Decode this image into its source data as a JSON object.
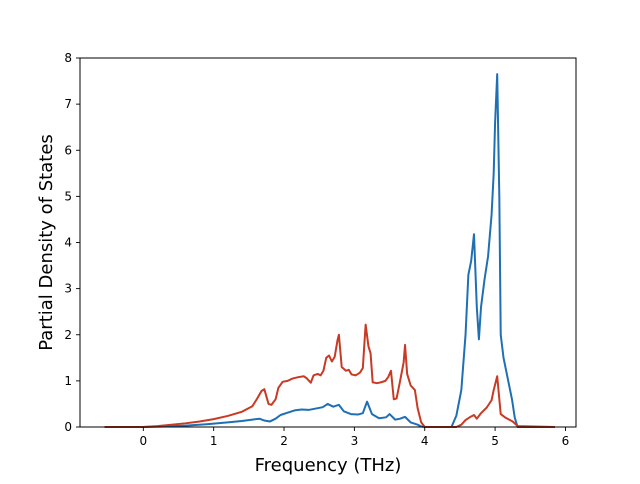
{
  "chart_data": {
    "type": "line",
    "title": "",
    "xlabel": "Frequency (THz)",
    "ylabel": "Partial Density of States",
    "xlim": [
      -0.9,
      6.15
    ],
    "ylim": [
      0,
      8
    ],
    "xticks": [
      0,
      1,
      2,
      3,
      4,
      5,
      6
    ],
    "yticks": [
      0,
      1,
      2,
      3,
      4,
      5,
      6,
      7,
      8
    ],
    "grid": false,
    "legend": "none",
    "series": [
      {
        "color": "#1f6fb4",
        "points": [
          [
            -0.55,
            0.0
          ],
          [
            0.0,
            0.0
          ],
          [
            0.3,
            0.01
          ],
          [
            0.6,
            0.03
          ],
          [
            0.9,
            0.06
          ],
          [
            1.2,
            0.1
          ],
          [
            1.4,
            0.13
          ],
          [
            1.55,
            0.16
          ],
          [
            1.65,
            0.18
          ],
          [
            1.72,
            0.14
          ],
          [
            1.8,
            0.12
          ],
          [
            1.88,
            0.18
          ],
          [
            1.95,
            0.26
          ],
          [
            2.05,
            0.31
          ],
          [
            2.15,
            0.36
          ],
          [
            2.25,
            0.38
          ],
          [
            2.35,
            0.37
          ],
          [
            2.45,
            0.4
          ],
          [
            2.55,
            0.43
          ],
          [
            2.62,
            0.5
          ],
          [
            2.7,
            0.44
          ],
          [
            2.78,
            0.48
          ],
          [
            2.85,
            0.34
          ],
          [
            2.95,
            0.28
          ],
          [
            3.05,
            0.27
          ],
          [
            3.12,
            0.3
          ],
          [
            3.18,
            0.55
          ],
          [
            3.25,
            0.28
          ],
          [
            3.35,
            0.19
          ],
          [
            3.45,
            0.21
          ],
          [
            3.5,
            0.28
          ],
          [
            3.58,
            0.16
          ],
          [
            3.65,
            0.18
          ],
          [
            3.72,
            0.22
          ],
          [
            3.8,
            0.1
          ],
          [
            3.9,
            0.05
          ],
          [
            3.95,
            0.01
          ],
          [
            4.0,
            0.0
          ],
          [
            4.38,
            0.0
          ],
          [
            4.45,
            0.25
          ],
          [
            4.52,
            0.8
          ],
          [
            4.58,
            2.0
          ],
          [
            4.62,
            3.3
          ],
          [
            4.66,
            3.6
          ],
          [
            4.7,
            4.18
          ],
          [
            4.74,
            2.6
          ],
          [
            4.77,
            1.9
          ],
          [
            4.8,
            2.6
          ],
          [
            4.85,
            3.2
          ],
          [
            4.9,
            3.7
          ],
          [
            4.95,
            4.6
          ],
          [
            4.98,
            5.5
          ],
          [
            5.0,
            6.6
          ],
          [
            5.03,
            7.65
          ],
          [
            5.06,
            5.0
          ],
          [
            5.08,
            2.0
          ],
          [
            5.12,
            1.5
          ],
          [
            5.18,
            1.05
          ],
          [
            5.24,
            0.6
          ],
          [
            5.28,
            0.2
          ],
          [
            5.32,
            0.0
          ],
          [
            5.85,
            0.0
          ]
        ]
      },
      {
        "color": "#c83a24",
        "points": [
          [
            -0.55,
            0.0
          ],
          [
            0.0,
            0.0
          ],
          [
            0.2,
            0.02
          ],
          [
            0.4,
            0.05
          ],
          [
            0.6,
            0.08
          ],
          [
            0.8,
            0.12
          ],
          [
            1.0,
            0.17
          ],
          [
            1.2,
            0.24
          ],
          [
            1.4,
            0.33
          ],
          [
            1.55,
            0.45
          ],
          [
            1.62,
            0.62
          ],
          [
            1.68,
            0.78
          ],
          [
            1.72,
            0.82
          ],
          [
            1.78,
            0.5
          ],
          [
            1.82,
            0.48
          ],
          [
            1.88,
            0.6
          ],
          [
            1.92,
            0.85
          ],
          [
            1.98,
            0.98
          ],
          [
            2.05,
            1.0
          ],
          [
            2.12,
            1.05
          ],
          [
            2.2,
            1.08
          ],
          [
            2.28,
            1.1
          ],
          [
            2.32,
            1.06
          ],
          [
            2.38,
            0.96
          ],
          [
            2.42,
            1.12
          ],
          [
            2.48,
            1.15
          ],
          [
            2.52,
            1.12
          ],
          [
            2.56,
            1.22
          ],
          [
            2.6,
            1.5
          ],
          [
            2.64,
            1.55
          ],
          [
            2.68,
            1.42
          ],
          [
            2.72,
            1.52
          ],
          [
            2.76,
            1.88
          ],
          [
            2.78,
            2.0
          ],
          [
            2.82,
            1.3
          ],
          [
            2.88,
            1.22
          ],
          [
            2.92,
            1.24
          ],
          [
            2.96,
            1.14
          ],
          [
            3.02,
            1.12
          ],
          [
            3.08,
            1.18
          ],
          [
            3.12,
            1.28
          ],
          [
            3.16,
            2.22
          ],
          [
            3.2,
            1.75
          ],
          [
            3.23,
            1.6
          ],
          [
            3.26,
            0.97
          ],
          [
            3.32,
            0.95
          ],
          [
            3.38,
            0.97
          ],
          [
            3.44,
            1.0
          ],
          [
            3.48,
            1.08
          ],
          [
            3.52,
            1.22
          ],
          [
            3.56,
            0.6
          ],
          [
            3.6,
            0.62
          ],
          [
            3.65,
            1.0
          ],
          [
            3.7,
            1.4
          ],
          [
            3.72,
            1.78
          ],
          [
            3.75,
            1.15
          ],
          [
            3.8,
            0.9
          ],
          [
            3.86,
            0.8
          ],
          [
            3.9,
            0.4
          ],
          [
            3.95,
            0.1
          ],
          [
            4.0,
            0.0
          ],
          [
            4.45,
            0.0
          ],
          [
            4.52,
            0.05
          ],
          [
            4.58,
            0.15
          ],
          [
            4.65,
            0.22
          ],
          [
            4.7,
            0.26
          ],
          [
            4.74,
            0.18
          ],
          [
            4.8,
            0.3
          ],
          [
            4.88,
            0.42
          ],
          [
            4.95,
            0.58
          ],
          [
            4.98,
            0.8
          ],
          [
            5.03,
            1.1
          ],
          [
            5.08,
            0.28
          ],
          [
            5.15,
            0.2
          ],
          [
            5.25,
            0.12
          ],
          [
            5.32,
            0.02
          ],
          [
            5.85,
            0.0
          ]
        ]
      }
    ]
  }
}
